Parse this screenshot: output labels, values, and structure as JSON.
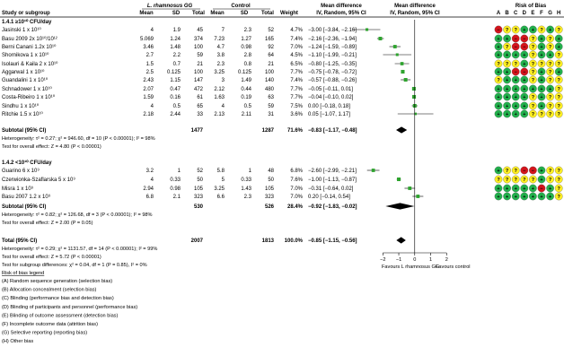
{
  "chart_data": {
    "type": "forest",
    "header": {
      "group1": "L. rhamnosus GG",
      "group2": "Control",
      "col_study": "Study or subgroup",
      "col_mean1": "Mean",
      "col_sd1": "SD",
      "col_total1": "Total",
      "col_mean2": "Mean",
      "col_sd2": "SD",
      "col_total2": "Total",
      "col_weight": "Weight",
      "md_title": "Mean difference",
      "md_method": "IV, Random, 95% CI",
      "plot_title": "Mean difference",
      "plot_method": "IV, Random, 95% CI",
      "rob_title": "Risk of Bias",
      "rob_letters": [
        "A",
        "B",
        "C",
        "D",
        "E",
        "F",
        "G",
        "H"
      ]
    },
    "subgroups": [
      {
        "title": "1.4.1 ≥10¹⁰ CFU/day",
        "studies": [
          {
            "name": "Jasinski 1 x 10¹⁰",
            "m1": "4",
            "sd1": "1.9",
            "n1": "45",
            "m2": "7",
            "sd2": "2.3",
            "n2": "52",
            "weight": "4.7%",
            "ci_text": "−3.00 [−3.84, −2.16]",
            "md": -3.0,
            "lo": -3.84,
            "hi": -2.16,
            "rob": [
              "r",
              "y",
              "y",
              "g",
              "g",
              "y",
              "g",
              "y"
            ]
          },
          {
            "name": "Basu 2009 2x 10¹⁰/10¹²",
            "m1": "5.069",
            "sd1": "1.24",
            "n1": "374",
            "m2": "7.23",
            "sd2": "1.27",
            "n2": "165",
            "weight": "7.4%",
            "ci_text": "−2.16 [−2.36, −1.94]",
            "md": -2.16,
            "lo": -2.36,
            "hi": -1.94,
            "rob": [
              "g",
              "g",
              "r",
              "r",
              "y",
              "g",
              "y",
              "g"
            ]
          },
          {
            "name": "Berni Canani 1.2x 10¹⁰",
            "m1": "3.46",
            "sd1": "1.48",
            "n1": "100",
            "m2": "4.7",
            "sd2": "0.98",
            "n2": "92",
            "weight": "7.0%",
            "ci_text": "−1.24 [−1.59, −0.89]",
            "md": -1.24,
            "lo": -1.59,
            "hi": -0.89,
            "rob": [
              "g",
              "y",
              "r",
              "r",
              "y",
              "g",
              "y",
              "g"
            ]
          },
          {
            "name": "Shornikova 1 x 10¹⁰",
            "m1": "2.7",
            "sd1": "2.2",
            "n1": "59",
            "m2": "3.8",
            "sd2": "2.8",
            "n2": "64",
            "weight": "4.5%",
            "ci_text": "−1.10 [−1.99, −0.21]",
            "md": -1.1,
            "lo": -1.99,
            "hi": -0.21,
            "rob": [
              "g",
              "g",
              "g",
              "g",
              "y",
              "g",
              "g",
              "y"
            ]
          },
          {
            "name": "Isolauri & Kaila 2 x 10¹⁰",
            "m1": "1.5",
            "sd1": "0.7",
            "n1": "21",
            "m2": "2.3",
            "sd2": "0.8",
            "n2": "21",
            "weight": "6.5%",
            "ci_text": "−0.80 [−1.25, −0.35]",
            "md": -0.8,
            "lo": -1.25,
            "hi": -0.35,
            "rob": [
              "y",
              "y",
              "y",
              "g",
              "y",
              "y",
              "y",
              "y"
            ]
          },
          {
            "name": "Aggarwal 1 x 10¹⁰",
            "m1": "2.5",
            "sd1": "0.125",
            "n1": "100",
            "m2": "3.25",
            "sd2": "0.125",
            "n2": "100",
            "weight": "7.7%",
            "ci_text": "−0.75 [−0.78, −0.72]",
            "md": -0.75,
            "lo": -0.78,
            "hi": -0.72,
            "rob": [
              "g",
              "g",
              "r",
              "r",
              "y",
              "g",
              "y",
              "g"
            ]
          },
          {
            "name": "Guandalini 1 x 10¹⁰",
            "m1": "2.43",
            "sd1": "1.15",
            "n1": "147",
            "m2": "3",
            "sd2": "1.49",
            "n2": "140",
            "weight": "7.4%",
            "ci_text": "−0.57 [−0.88, −0.26]",
            "md": -0.57,
            "lo": -0.88,
            "hi": -0.26,
            "rob": [
              "y",
              "g",
              "g",
              "g",
              "y",
              "g",
              "y",
              "y"
            ]
          },
          {
            "name": "Schnadower 1 x 10¹⁰",
            "m1": "2.07",
            "sd1": "0.47",
            "n1": "472",
            "m2": "2.12",
            "sd2": "0.44",
            "n2": "480",
            "weight": "7.7%",
            "ci_text": "−0.05 [−0.11, 0.01]",
            "md": -0.05,
            "lo": -0.11,
            "hi": 0.01,
            "rob": [
              "g",
              "g",
              "g",
              "g",
              "g",
              "g",
              "g",
              "y"
            ]
          },
          {
            "name": "Costa-Ribeiro 1 x 10¹⁰",
            "m1": "1.59",
            "sd1": "0.16",
            "n1": "61",
            "m2": "1.63",
            "sd2": "0.19",
            "n2": "63",
            "weight": "7.7%",
            "ci_text": "−0.04 [−0.10, 0.02]",
            "md": -0.04,
            "lo": -0.1,
            "hi": 0.02,
            "rob": [
              "g",
              "g",
              "g",
              "g",
              "y",
              "g",
              "y",
              "y"
            ]
          },
          {
            "name": "Sindhu 1 x 10¹⁰",
            "m1": "4",
            "sd1": "0.5",
            "n1": "65",
            "m2": "4",
            "sd2": "0.5",
            "n2": "59",
            "weight": "7.5%",
            "ci_text": "0.00 [−0.18, 0.18]",
            "md": 0.0,
            "lo": -0.18,
            "hi": 0.18,
            "rob": [
              "g",
              "g",
              "g",
              "g",
              "y",
              "g",
              "y",
              "y"
            ]
          },
          {
            "name": "Ritchie 1.5 x 10¹⁰",
            "m1": "2.18",
            "sd1": "2.44",
            "n1": "33",
            "m2": "2.13",
            "sd2": "2.11",
            "n2": "31",
            "weight": "3.6%",
            "ci_text": "0.05 [−1.07, 1.17]",
            "md": 0.05,
            "lo": -1.07,
            "hi": 1.17,
            "rob": [
              "g",
              "g",
              "g",
              "g",
              "y",
              "y",
              "y",
              "y"
            ]
          }
        ],
        "subtotal": {
          "label": "Subtotal (95% CI)",
          "n1": "1477",
          "n2": "1287",
          "weight": "71.6%",
          "ci_text": "−0.83 [−1.17, −0.48]",
          "md": -0.83,
          "lo": -1.17,
          "hi": -0.48
        },
        "heterogeneity": "Heterogeneity: τ² = 0.27; χ² = 946.60, df = 10 (P < 0.00001); I² = 98%",
        "overall_effect": "Test for overall effect: Z = 4.80 (P < 0.00001)"
      },
      {
        "title": "1.4.2 <10¹⁰ CFU/day",
        "studies": [
          {
            "name": "Guarino 6 x 10⁹",
            "m1": "3.2",
            "sd1": "1",
            "n1": "52",
            "m2": "5.8",
            "sd2": "1",
            "n2": "48",
            "weight": "6.8%",
            "ci_text": "−2.60 [−2.99, −2.21]",
            "md": -2.6,
            "lo": -2.99,
            "hi": -2.21,
            "rob": [
              "g",
              "y",
              "y",
              "r",
              "r",
              "g",
              "y",
              "y"
            ]
          },
          {
            "name": "Czerwionka-Szaflarska 5 x 10⁹",
            "m1": "4",
            "sd1": "0.33",
            "n1": "50",
            "m2": "5",
            "sd2": "0.33",
            "n2": "50",
            "weight": "7.6%",
            "ci_text": "−1.00 [−1.13, −0.87]",
            "md": -1.0,
            "lo": -1.13,
            "hi": -0.87,
            "rob": [
              "y",
              "y",
              "y",
              "y",
              "y",
              "g",
              "y",
              "y"
            ]
          },
          {
            "name": "Misra 1 x 10⁹",
            "m1": "2.94",
            "sd1": "0.98",
            "n1": "105",
            "m2": "3.25",
            "sd2": "1.43",
            "n2": "105",
            "weight": "7.0%",
            "ci_text": "−0.31 [−0.64, 0.02]",
            "md": -0.31,
            "lo": -0.64,
            "hi": 0.02,
            "rob": [
              "g",
              "g",
              "g",
              "g",
              "g",
              "r",
              "g",
              "y"
            ]
          },
          {
            "name": "Basu 2007 1.2 x 10⁹",
            "m1": "6.8",
            "sd1": "2.1",
            "n1": "323",
            "m2": "6.6",
            "sd2": "2.3",
            "n2": "323",
            "weight": "7.0%",
            "ci_text": "0.20 [−0.14, 0.54]",
            "md": 0.2,
            "lo": -0.14,
            "hi": 0.54,
            "rob": [
              "g",
              "g",
              "g",
              "g",
              "g",
              "g",
              "g",
              "y"
            ]
          }
        ],
        "subtotal": {
          "label": "Subtotal (95% CI)",
          "n1": "530",
          "n2": "526",
          "weight": "28.4%",
          "ci_text": "−0.92 [−1.83, −0.02]",
          "md": -0.92,
          "lo": -1.83,
          "hi": -0.02
        },
        "heterogeneity": "Heterogeneity: τ² = 0.82; χ² = 126.68, df = 3 (P < 0.00001); I² = 98%",
        "overall_effect": "Test for overall effect: Z = 2.00 (P = 0.05)"
      }
    ],
    "total": {
      "label": "Total (95% CI)",
      "n1": "2007",
      "n2": "1813",
      "weight": "100.0%",
      "ci_text": "−0.85 [−1.15, −0.56]",
      "md": -0.85,
      "lo": -1.15,
      "hi": -0.56
    },
    "total_heterogeneity": "Heterogeneity: τ² = 0.29; χ² = 1131.57, df = 14 (P < 0.00001); I² = 99%",
    "total_overall_effect": "Test for overall effect: Z = 5.72 (P < 0.00001)",
    "subgroup_differences": "Test for subgroup differences: χ² = 0.04, df = 1 (P = 0.85), I² = 0%",
    "axis": {
      "ticks": [
        -2,
        -1,
        0,
        1,
        2
      ],
      "tick_labels": [
        "−2",
        "−1",
        "0",
        "1",
        "2"
      ],
      "xlim": [
        -3.2,
        3.0
      ],
      "favours_left": "Favours L rhamnosus GG",
      "favours_right": "Favours control"
    },
    "legend": {
      "title": "Risk of bias legend",
      "items": [
        "(A) Random sequence generation (selection bias)",
        "(B) Allocation concealment (selection bias)",
        "(C) Blinding (performance bias and detection bias)",
        "(D) Blinding of participants and personnel (performance bias)",
        "(E) Blinding of outcome assessment (detection bias)",
        "(F) Incomplete outcome data (attrition bias)",
        "(G) Selective reporting (reporting bias)",
        "(H) Other bias"
      ]
    },
    "colors": {
      "square": "#2ea32e",
      "diamond": "#000000",
      "low": "#22b14c",
      "unclear": "#ffee22",
      "high": "#d4141c",
      "header_line": "#000000"
    },
    "rob_symbols": {
      "g": "+",
      "y": "?",
      "r": "−"
    }
  }
}
